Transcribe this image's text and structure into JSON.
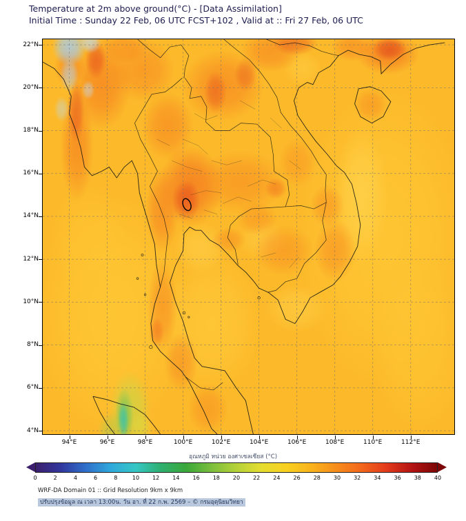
{
  "header": {
    "title": "Temperature at 2m above ground(°C) - [Data Assimilation]",
    "subtitle": "Initial Time : Sunday 22 Feb, 06 UTC FCST+102 , Valid at :: Fri 27 Feb, 06 UTC"
  },
  "axes": {
    "lat_ticks": [
      {
        "value": 22,
        "label": "22°N"
      },
      {
        "value": 20,
        "label": "20°N"
      },
      {
        "value": 18,
        "label": "18°N"
      },
      {
        "value": 16,
        "label": "16°N"
      },
      {
        "value": 14,
        "label": "14°N"
      },
      {
        "value": 12,
        "label": "12°N"
      },
      {
        "value": 10,
        "label": "10°N"
      },
      {
        "value": 8,
        "label": "8°N"
      },
      {
        "value": 6,
        "label": "6°N"
      },
      {
        "value": 4,
        "label": "4°N"
      }
    ],
    "lon_ticks": [
      {
        "value": 94,
        "label": "94°E"
      },
      {
        "value": 96,
        "label": "96°E"
      },
      {
        "value": 98,
        "label": "98°E"
      },
      {
        "value": 100,
        "label": "100°E"
      },
      {
        "value": 102,
        "label": "102°E"
      },
      {
        "value": 104,
        "label": "104°E"
      },
      {
        "value": 106,
        "label": "106°E"
      },
      {
        "value": 108,
        "label": "108°E"
      },
      {
        "value": 110,
        "label": "110°E"
      },
      {
        "value": 112,
        "label": "112°E"
      }
    ]
  },
  "colorbar": {
    "label": "อุณหภูมิ หน่วย องศาเซลเซียส (°C)",
    "min": 0,
    "max": 40,
    "tick_labels": [
      "0",
      "2",
      "4",
      "6",
      "8",
      "10",
      "12",
      "14",
      "16",
      "18",
      "20",
      "22",
      "24",
      "26",
      "28",
      "30",
      "32",
      "34",
      "36",
      "38",
      "40"
    ],
    "gradient": [
      "#3b1f6e",
      "#31379e",
      "#2f6fca",
      "#2fa9dc",
      "#35c6c3",
      "#2fae6e",
      "#3aa83a",
      "#7cbe3c",
      "#b5d238",
      "#e5dd30",
      "#f8d020",
      "#f9b21c",
      "#f68c1c",
      "#f2661c",
      "#e23a1c",
      "#b31313",
      "#7d0606"
    ]
  },
  "footer": {
    "line1": "WRF-DA Domain 01 :: Grid Resolution 9km x 9km",
    "line2": "ปรับปรุงข้อมูล ณ เวลา 13:00น. วัน อา. ที่ 22 ก.พ. 2569 – © กรมอุตุนิยมวิทยา"
  },
  "chart_data": {
    "type": "heatmap",
    "title": "Temperature at 2m above ground(°C) - [Data Assimilation]",
    "subtitle": "Initial Time : Sunday 22 Feb, 06 UTC FCST+102 , Valid at :: Fri 27 Feb, 06 UTC",
    "x": {
      "name": "Longitude",
      "unit": "°E",
      "tick_values": [
        94,
        96,
        98,
        100,
        102,
        104,
        106,
        108,
        110,
        112
      ]
    },
    "y": {
      "name": "Latitude",
      "unit": "°N",
      "tick_values": [
        4,
        6,
        8,
        10,
        12,
        14,
        16,
        18,
        20,
        22
      ]
    },
    "colorbar": {
      "label": "อุณหภูมิ หน่วย องศาเซลเซียส (°C)",
      "min": 0,
      "max": 40,
      "tick_step": 2,
      "position": "bottom"
    },
    "grid": "dashed 2-degree graticule",
    "estimated_values": [
      {
        "area": "Central Thailand plain (~100°E, 14-16°N)",
        "temp_c": 35
      },
      {
        "area": "Closed hot contour ring near 100.2°E, 14.6°N",
        "temp_c": 36
      },
      {
        "area": "Central Myanmar valley (~95-96°E, 19-21°N)",
        "temp_c": 34
      },
      {
        "area": "Northern Laos (~101-103°E, 19-21°N)",
        "temp_c": 34
      },
      {
        "area": "Northeast Thailand / Isan plateau",
        "temp_c": 33
      },
      {
        "area": "Cambodia lowlands",
        "temp_c": 33
      },
      {
        "area": "Malay Peninsula ridge (~98.5-99.5°E, 7-11°N)",
        "temp_c": 33
      },
      {
        "area": "Northern Vietnam and SE China coast (~105-112°E, 20-22°N)",
        "temp_c": 34
      },
      {
        "area": "Andaman Sea and Gulf of Thailand",
        "temp_c": 30
      },
      {
        "area": "South China Sea",
        "temp_c": 29
      },
      {
        "area": "South-central Vietnam coastal strip",
        "temp_c": 28
      },
      {
        "area": "Northwest mountains (~94-95°E, 20-22°N)",
        "temp_c": 12
      },
      {
        "area": "Sumatra highlands (~97°E, 4-5.5°N)",
        "temp_c": 20
      }
    ]
  }
}
